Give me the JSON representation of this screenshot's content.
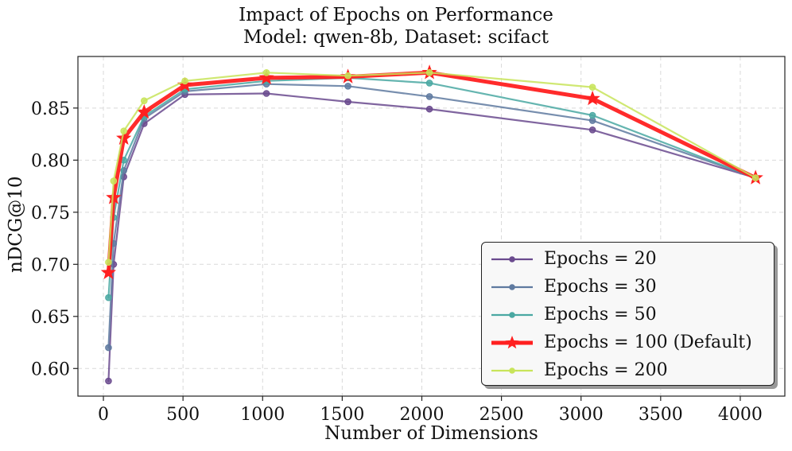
{
  "chart_data": {
    "type": "line",
    "title": "Impact of Epochs on Performance",
    "subtitle": "Model: qwen-8b, Dataset: scifact",
    "xlabel": "Number of Dimensions",
    "ylabel": "nDCG@10",
    "xlim": [
      -160,
      4280
    ],
    "ylim": [
      0.5735,
      0.8995
    ],
    "xticks": [
      0,
      500,
      1000,
      1500,
      2000,
      2500,
      3000,
      3500,
      4000
    ],
    "yticks": [
      0.6,
      0.65,
      0.7,
      0.75,
      0.8,
      0.85
    ],
    "ytick_labels": [
      "0.60",
      "0.65",
      "0.70",
      "0.75",
      "0.80",
      "0.85"
    ],
    "grid": true,
    "legend_position": "lower-right",
    "x": [
      32,
      64,
      128,
      256,
      512,
      1024,
      1536,
      2048,
      3072,
      4096
    ],
    "series": [
      {
        "name": "Epochs = 20",
        "color": "#6a4a8e",
        "marker": "circle",
        "values": [
          0.588,
          0.7,
          0.784,
          0.835,
          0.863,
          0.864,
          0.856,
          0.849,
          0.829,
          0.783
        ]
      },
      {
        "name": "Epochs = 30",
        "color": "#5f7aa0",
        "marker": "circle",
        "values": [
          0.62,
          0.72,
          0.79,
          0.84,
          0.866,
          0.873,
          0.871,
          0.861,
          0.838,
          0.783
        ]
      },
      {
        "name": "Epochs = 50",
        "color": "#4aa8a2",
        "marker": "circle",
        "values": [
          0.668,
          0.745,
          0.8,
          0.842,
          0.868,
          0.876,
          0.879,
          0.874,
          0.843,
          0.783
        ]
      },
      {
        "name": "Epochs = 100 (Default)",
        "color": "#ff2020",
        "marker": "star",
        "values": [
          0.692,
          0.764,
          0.821,
          0.846,
          0.872,
          0.879,
          0.88,
          0.884,
          0.859,
          0.783
        ]
      },
      {
        "name": "Epochs = 200",
        "color": "#c8e45a",
        "marker": "circle",
        "values": [
          0.702,
          0.78,
          0.828,
          0.857,
          0.876,
          0.884,
          0.881,
          0.884,
          0.87,
          0.783
        ]
      }
    ]
  }
}
